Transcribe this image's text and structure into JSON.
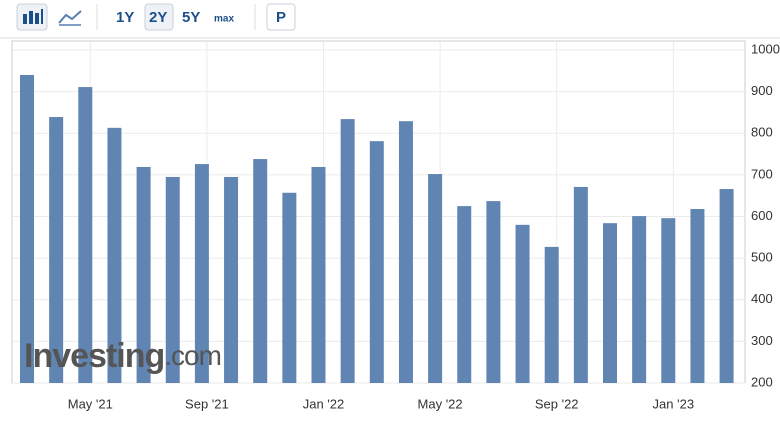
{
  "toolbar": {
    "ranges": [
      "1Y",
      "2Y",
      "5Y",
      "max"
    ],
    "selected": "2Y",
    "extra": "P"
  },
  "watermark": {
    "brand": "Investing",
    "suffix": ".com"
  },
  "chart_data": {
    "type": "bar",
    "categories": [
      null,
      null,
      "May '21",
      null,
      null,
      null,
      "Sep '21",
      null,
      null,
      null,
      "Jan '22",
      null,
      null,
      null,
      "May '22",
      null,
      null,
      null,
      "Sep '22",
      null,
      null,
      null,
      "Jan '23",
      null,
      null
    ],
    "values": [
      940,
      839,
      911,
      813,
      719,
      695,
      726,
      695,
      738,
      657,
      719,
      834,
      781,
      829,
      702,
      625,
      637,
      580,
      527,
      671,
      584,
      601,
      596,
      618,
      666
    ],
    "color": "#6185b3",
    "ylim": [
      200,
      1000
    ],
    "yticks": [
      200,
      300,
      400,
      500,
      600,
      700,
      800,
      900,
      1000
    ],
    "grid": true
  }
}
